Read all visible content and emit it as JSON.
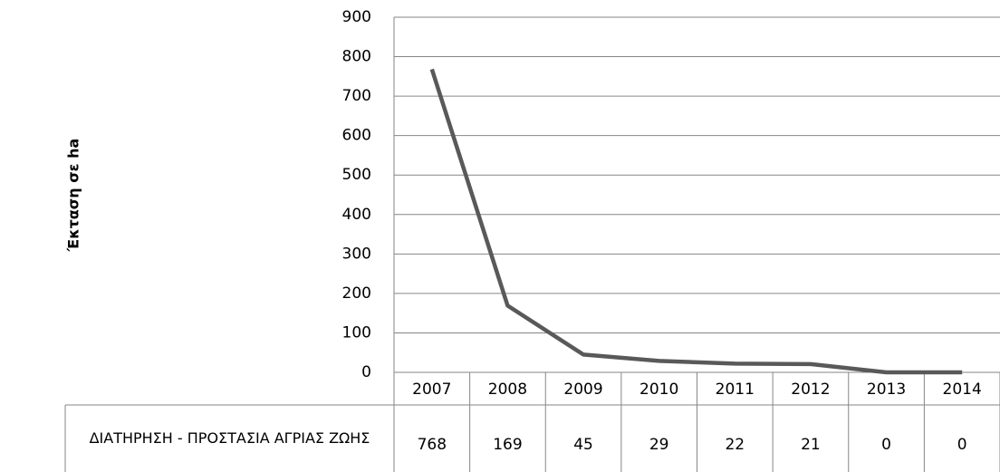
{
  "chart_data": {
    "type": "line",
    "y_label": "Έκταση σε ha",
    "categories": [
      "2007",
      "2008",
      "2009",
      "2010",
      "2011",
      "2012",
      "2013",
      "2014"
    ],
    "series": [
      {
        "name": "ΔΙΑΤΗΡΗΣΗ - ΠΡΟΣΤΑΣΙΑ ΑΓΡΙΑΣ ΖΩΗΣ",
        "color": "#595959",
        "values": [
          768,
          169,
          45,
          29,
          22,
          21,
          0,
          0
        ]
      }
    ],
    "ylim": [
      0,
      900
    ],
    "yticks": [
      0,
      100,
      200,
      300,
      400,
      500,
      600,
      700,
      800,
      900
    ],
    "grid": true
  }
}
